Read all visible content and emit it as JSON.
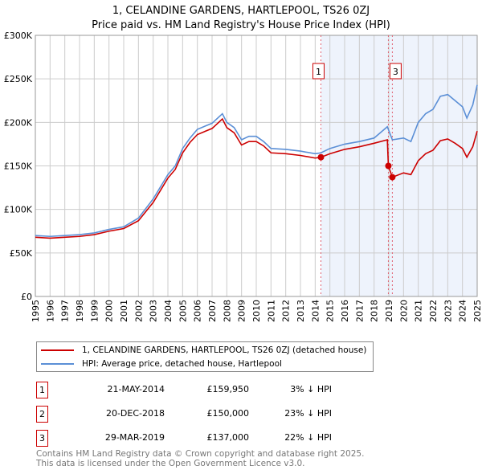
{
  "chart_data": {
    "type": "line",
    "title": "1, CELANDINE GARDENS, HARTLEPOOL, TS26 0ZJ",
    "subtitle": "Price paid vs. HM Land Registry's House Price Index (HPI)",
    "xlim": [
      1995,
      2025
    ],
    "ylim": [
      0,
      300000
    ],
    "x_ticks": [
      "1995",
      "1996",
      "1997",
      "1998",
      "1999",
      "2000",
      "2001",
      "2002",
      "2003",
      "2004",
      "2005",
      "2006",
      "2007",
      "2008",
      "2009",
      "2010",
      "2011",
      "2012",
      "2013",
      "2014",
      "2015",
      "2016",
      "2017",
      "2018",
      "2019",
      "2020",
      "2021",
      "2022",
      "2023",
      "2024",
      "2025"
    ],
    "y_ticks": [
      {
        "v": 0,
        "label": "£0"
      },
      {
        "v": 50000,
        "label": "£50K"
      },
      {
        "v": 100000,
        "label": "£100K"
      },
      {
        "v": 150000,
        "label": "£150K"
      },
      {
        "v": 200000,
        "label": "£200K"
      },
      {
        "v": 250000,
        "label": "£250K"
      },
      {
        "v": 300000,
        "label": "£300K"
      }
    ],
    "grid": true,
    "series": [
      {
        "name": "1, CELANDINE GARDENS, HARTLEPOOL, TS26 0ZJ (detached house)",
        "color": "#cc0000",
        "x": [
          1995,
          1996,
          1997,
          1998,
          1999,
          2000,
          2001,
          2002,
          2003,
          2004,
          2004.5,
          2005,
          2005.5,
          2006,
          2007,
          2007.7,
          2008,
          2008.5,
          2009,
          2009.5,
          2010,
          2010.5,
          2011,
          2012,
          2013,
          2014,
          2014.39,
          2015,
          2016,
          2017,
          2018,
          2018.9,
          2018.97,
          2019.24,
          2020,
          2020.5,
          2021,
          2021.5,
          2022,
          2022.5,
          2023,
          2023.5,
          2024,
          2024.3,
          2024.7,
          2025
        ],
        "y": [
          68000,
          67000,
          68000,
          69000,
          71000,
          75000,
          78000,
          87000,
          108000,
          136000,
          146000,
          165000,
          177000,
          186000,
          193000,
          204000,
          194000,
          188000,
          174000,
          178000,
          178000,
          173000,
          165000,
          164000,
          162000,
          159000,
          159950,
          164000,
          169000,
          172000,
          176000,
          180000,
          150000,
          137000,
          142000,
          140000,
          156000,
          164000,
          168000,
          179000,
          181000,
          176000,
          170000,
          160000,
          172000,
          190000
        ]
      },
      {
        "name": "HPI: Average price, detached house, Hartlepool",
        "color": "#5b8fd6",
        "x": [
          1995,
          1996,
          1997,
          1998,
          1999,
          2000,
          2001,
          2002,
          2003,
          2004,
          2004.5,
          2005,
          2005.5,
          2006,
          2007,
          2007.7,
          2008,
          2008.5,
          2009,
          2009.5,
          2010,
          2010.5,
          2011,
          2012,
          2013,
          2014,
          2014.39,
          2015,
          2016,
          2017,
          2018,
          2018.9,
          2019.24,
          2020,
          2020.5,
          2021,
          2021.5,
          2022,
          2022.5,
          2023,
          2023.5,
          2024,
          2024.3,
          2024.7,
          2025
        ],
        "y": [
          70000,
          69000,
          70000,
          71000,
          73000,
          77000,
          80000,
          90000,
          112000,
          140000,
          150000,
          170000,
          182000,
          192000,
          199000,
          210000,
          200000,
          194000,
          180000,
          184000,
          184000,
          178000,
          170000,
          169000,
          167000,
          164000,
          165000,
          170000,
          175000,
          178000,
          182000,
          195000,
          180000,
          182000,
          178000,
          200000,
          210000,
          215000,
          230000,
          232000,
          225000,
          218000,
          205000,
          220000,
          243000
        ]
      }
    ],
    "shaded_from": 2014.39,
    "sales": [
      {
        "id": "1",
        "x": 2014.39,
        "price": 159950,
        "date": "21-MAY-2014",
        "price_label": "£159,950",
        "hpi": "3% ↓ HPI"
      },
      {
        "id": "2",
        "x": 2018.97,
        "price": 150000,
        "date": "20-DEC-2018",
        "price_label": "£150,000",
        "hpi": "23% ↓ HPI"
      },
      {
        "id": "3",
        "x": 2019.24,
        "price": 137000,
        "date": "29-MAR-2019",
        "price_label": "£137,000",
        "hpi": "22% ↓ HPI"
      }
    ],
    "legend_placement": "below"
  },
  "footer": [
    "Contains HM Land Registry data © Crown copyright and database right 2025.",
    "This data is licensed under the Open Government Licence v3.0."
  ]
}
